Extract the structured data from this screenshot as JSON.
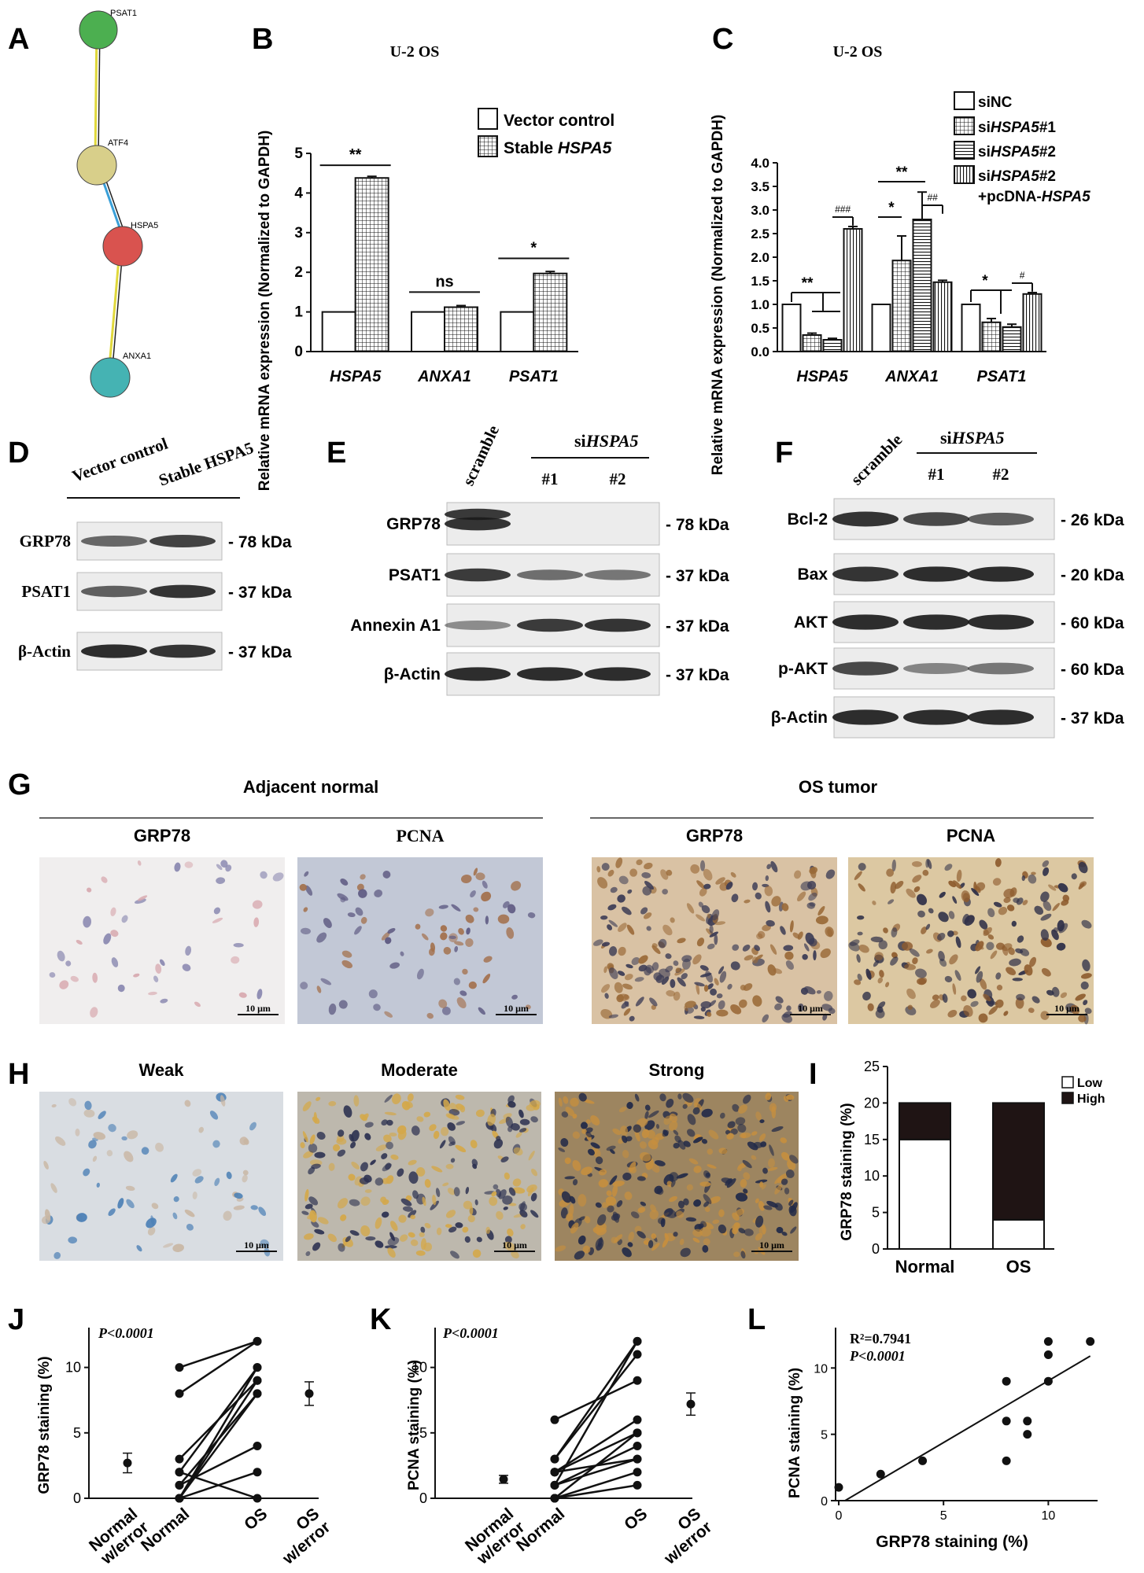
{
  "panels": {
    "A": {
      "letter": "A",
      "nodes": [
        "PSAT1",
        "ATF4",
        "HSPA5",
        "ANXA1"
      ],
      "colors": [
        "#4caf50",
        "#d8cf8a",
        "#d9534f",
        "#45b3b3"
      ]
    },
    "B": {
      "letter": "B"
    },
    "C": {
      "letter": "C"
    },
    "D": {
      "letter": "D",
      "columns": [
        "Vector control",
        "Stable HSPA5"
      ],
      "rows": [
        "GRP78",
        "PSAT1",
        "β-Actin"
      ],
      "sizes": [
        "- 78 kDa",
        "- 37 kDa",
        "- 37 kDa"
      ]
    },
    "E": {
      "letter": "E",
      "scramble": "scramble",
      "group_prefix": "si",
      "group_gene": "HSPA5",
      "lanes": [
        "#1",
        "#2"
      ],
      "rows": [
        "GRP78",
        "PSAT1",
        "Annexin A1",
        "β-Actin"
      ],
      "sizes": [
        "- 78 kDa",
        "- 37 kDa",
        "- 37 kDa",
        "- 37 kDa"
      ]
    },
    "F": {
      "letter": "F",
      "scramble": "scramble",
      "group_prefix": "si",
      "group_gene": "HSPA5",
      "lanes": [
        "#1",
        "#2"
      ],
      "rows": [
        "Bcl-2",
        "Bax",
        "AKT",
        "p-AKT",
        "β-Actin"
      ],
      "sizes": [
        "- 26 kDa",
        "- 20 kDa",
        "- 60 kDa",
        "- 60 kDa",
        "- 37 kDa"
      ]
    },
    "G": {
      "letter": "G",
      "group_left": "Adjacent normal",
      "group_right": "OS tumor",
      "images": [
        "GRP78",
        "PCNA",
        "GRP78",
        "PCNA"
      ],
      "scalebar": "10 μm"
    },
    "H": {
      "letter": "H",
      "images": [
        "Weak",
        "Moderate",
        "Strong"
      ],
      "scalebar": "10 μm"
    },
    "I": {
      "letter": "I"
    },
    "J": {
      "letter": "J",
      "pvalue": "P<0.0001"
    },
    "K": {
      "letter": "K",
      "pvalue": "P<0.0001"
    },
    "L": {
      "letter": "L",
      "r2": "R²=0.7941",
      "pvalue": "P<0.0001"
    }
  },
  "chart_data": [
    {
      "id": "B",
      "type": "bar",
      "title": "U-2 OS",
      "ylabel": "Relative mRNA expression (Normalized to GAPDH)",
      "ylim": [
        0,
        5
      ],
      "yticks": [
        0,
        1,
        2,
        3,
        4,
        5
      ],
      "categories": [
        "HSPA5",
        "ANXA1",
        "PSAT1"
      ],
      "series": [
        {
          "name": "Vector control",
          "values": [
            1.0,
            1.0,
            1.0
          ],
          "errors": [
            0,
            0,
            0
          ],
          "pattern": "none"
        },
        {
          "name": "Stable HSPA5",
          "values": [
            4.38,
            1.12,
            1.97
          ],
          "errors": [
            0.04,
            0.04,
            0.05
          ],
          "pattern": "grid"
        }
      ],
      "significance": [
        "**",
        "ns",
        "*"
      ]
    },
    {
      "id": "C",
      "type": "bar",
      "title": "U-2 OS",
      "ylabel": "Relative mRNA expression (Normalized to GAPDH)",
      "ylim": [
        0,
        4.0
      ],
      "yticks": [
        0.0,
        0.5,
        1.0,
        1.5,
        2.0,
        2.5,
        3.0,
        3.5,
        4.0
      ],
      "categories": [
        "HSPA5",
        "ANXA1",
        "PSAT1"
      ],
      "series": [
        {
          "name": "siNC",
          "values": [
            1.0,
            1.0,
            1.0
          ],
          "errors": [
            0,
            0,
            0
          ],
          "pattern": "none"
        },
        {
          "name": "siHSPA5#1",
          "values": [
            0.35,
            1.93,
            0.62
          ],
          "errors": [
            0.04,
            0.52,
            0.08
          ],
          "pattern": "grid"
        },
        {
          "name": "siHSPA5#2",
          "values": [
            0.25,
            2.8,
            0.52
          ],
          "errors": [
            0.03,
            0.58,
            0.06
          ],
          "pattern": "hlines"
        },
        {
          "name": "siHSPA5#2 +pcDNA-HSPA5",
          "values": [
            2.6,
            1.47,
            1.22
          ],
          "errors": [
            0.05,
            0.04,
            0.03
          ],
          "pattern": "vlines"
        }
      ],
      "significance": [
        "**",
        "*",
        "**",
        "*"
      ],
      "rescue": [
        "###",
        "##",
        "#"
      ]
    },
    {
      "id": "I",
      "type": "bar",
      "stacked": true,
      "ylabel": "GRP78 staining (%)",
      "ylim": [
        0,
        25
      ],
      "yticks": [
        0,
        5,
        10,
        15,
        20,
        25
      ],
      "categories": [
        "Normal",
        "OS"
      ],
      "series": [
        {
          "name": "Low",
          "values": [
            15,
            4
          ],
          "color": "#ffffff"
        },
        {
          "name": "High",
          "values": [
            5,
            16
          ],
          "color": "#1f1414"
        }
      ]
    },
    {
      "id": "J",
      "type": "scatter",
      "ylabel": "GRP78 staining (%)",
      "ylim": [
        0,
        12
      ],
      "yticks": [
        0,
        5,
        10
      ],
      "categories": [
        "Normal w/error",
        "Normal",
        "OS",
        "OS w/error"
      ],
      "pairs": [
        [
          10,
          12
        ],
        [
          8,
          12
        ],
        [
          3,
          9
        ],
        [
          2,
          10
        ],
        [
          1,
          8
        ],
        [
          0,
          9
        ],
        [
          0,
          10
        ],
        [
          0,
          8
        ],
        [
          1,
          4
        ],
        [
          0,
          2
        ],
        [
          2,
          0
        ]
      ],
      "summary": [
        {
          "mean": 2.7,
          "sem": 0.75
        },
        {
          "mean": 8.0,
          "sem": 0.9
        }
      ]
    },
    {
      "id": "K",
      "type": "scatter",
      "ylabel": "PCNA staining (%)",
      "ylim": [
        0,
        12
      ],
      "yticks": [
        0,
        5,
        10
      ],
      "categories": [
        "Normal w/error",
        "Normal",
        "OS",
        "OS w/error"
      ],
      "pairs": [
        [
          6,
          9
        ],
        [
          3,
          12
        ],
        [
          3,
          11
        ],
        [
          2,
          6
        ],
        [
          2,
          5
        ],
        [
          1,
          4
        ],
        [
          1,
          3
        ],
        [
          0,
          2
        ],
        [
          0,
          1
        ],
        [
          1,
          12
        ],
        [
          2,
          3
        ],
        [
          0,
          5
        ]
      ],
      "summary": [
        {
          "mean": 1.45,
          "sem": 0.3
        },
        {
          "mean": 7.2,
          "sem": 0.85
        }
      ]
    },
    {
      "id": "L",
      "type": "scatter",
      "xlabel": "GRP78 staining (%)",
      "ylabel": "PCNA staining (%)",
      "xlim": [
        0,
        12
      ],
      "ylim": [
        0,
        12
      ],
      "xticks": [
        0,
        5,
        10
      ],
      "yticks": [
        0,
        5,
        10
      ],
      "points": [
        [
          0,
          1
        ],
        [
          2,
          2
        ],
        [
          4,
          3
        ],
        [
          8,
          9
        ],
        [
          8,
          6
        ],
        [
          8,
          3
        ],
        [
          9,
          6
        ],
        [
          9,
          5
        ],
        [
          10,
          12
        ],
        [
          10,
          11
        ],
        [
          10,
          9
        ],
        [
          12,
          12
        ]
      ],
      "fit": [
        [
          0.3,
          0
        ],
        [
          12,
          10.9
        ]
      ]
    }
  ]
}
